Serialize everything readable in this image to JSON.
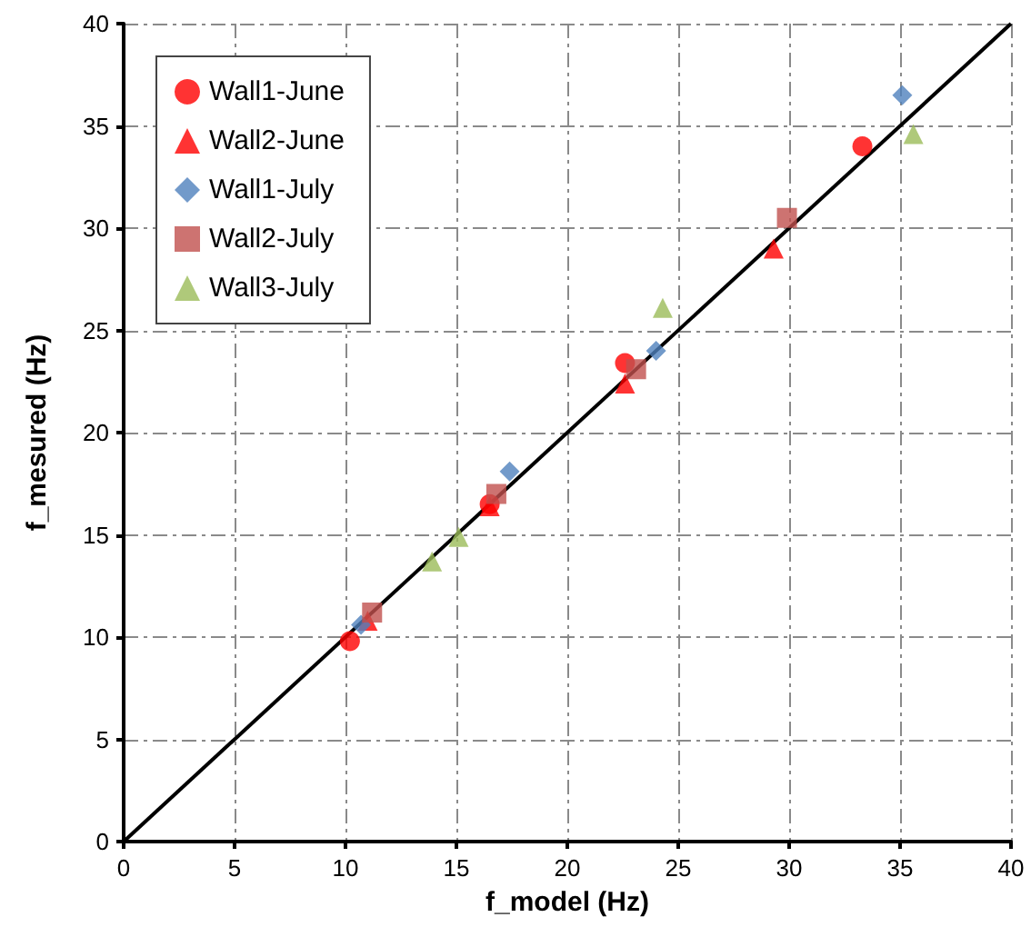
{
  "chart_data": {
    "type": "scatter",
    "xlabel": "f_model (Hz)",
    "ylabel": "f_mesured (Hz)",
    "xlim": [
      0,
      40
    ],
    "xticks": [
      0,
      5,
      10,
      15,
      20,
      25,
      30,
      35,
      40
    ],
    "ylim": [
      0,
      40
    ],
    "yticks": [
      0,
      5,
      10,
      15,
      20,
      25,
      30,
      35,
      40
    ],
    "grid": true,
    "legend": "top left",
    "series": [
      {
        "name": "Wall1-June",
        "color": "#ff0000",
        "marker": "circle",
        "x": [
          10.2,
          16.5,
          22.6,
          33.3
        ],
        "values": [
          9.8,
          16.5,
          23.4,
          34.0
        ]
      },
      {
        "name": "Wall2-June",
        "color": "#ff0000",
        "marker": "triangle",
        "x": [
          11.0,
          16.5,
          22.6,
          29.3
        ],
        "values": [
          10.8,
          16.4,
          22.4,
          29.0
        ]
      },
      {
        "name": "Wall1-July",
        "color": "#4f81bd",
        "marker": "diamond",
        "x": [
          10.7,
          17.4,
          24.0,
          35.1
        ],
        "values": [
          10.6,
          18.1,
          24.0,
          36.5
        ]
      },
      {
        "name": "Wall2-July",
        "color": "#c0504d",
        "marker": "square",
        "x": [
          11.2,
          16.8,
          23.1,
          29.9
        ],
        "values": [
          11.2,
          17.0,
          23.1,
          30.5
        ]
      },
      {
        "name": "Wall3-July",
        "color": "#9bbb59",
        "marker": "triangle",
        "x": [
          13.9,
          15.1,
          24.3,
          35.6
        ],
        "values": [
          13.7,
          14.9,
          26.1,
          34.6
        ]
      },
      {
        "type": "line",
        "color": "#000000",
        "marker": "none",
        "line_style": "solid",
        "x": [
          0,
          40
        ],
        "values": [
          0,
          40
        ]
      }
    ]
  }
}
